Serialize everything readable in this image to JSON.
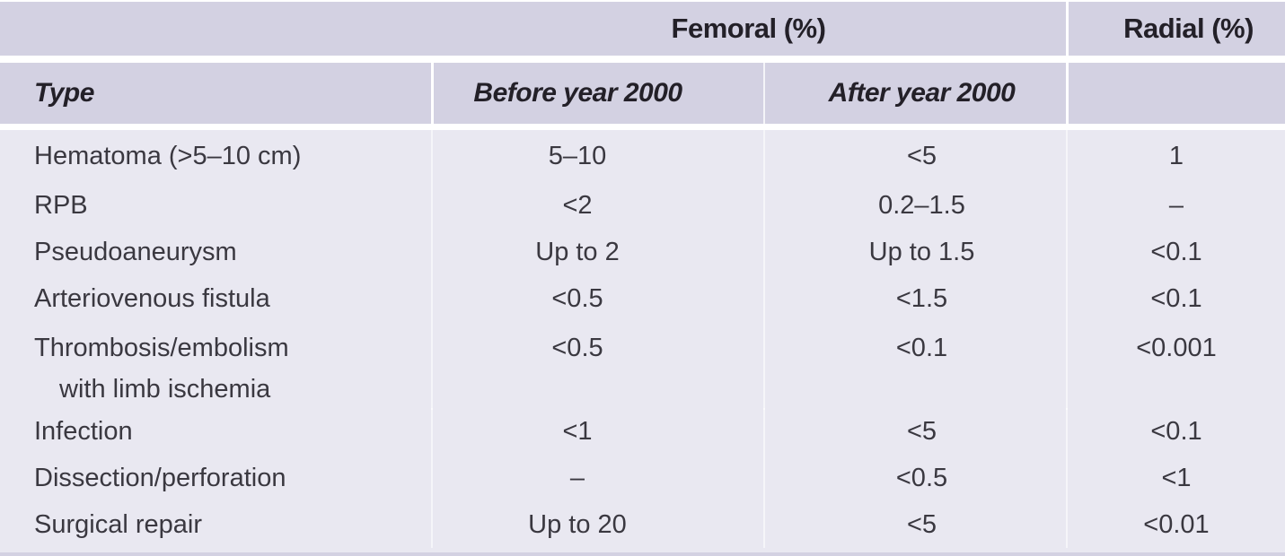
{
  "table": {
    "group_headers": {
      "femoral": "Femoral (%)",
      "radial": "Radial (%)"
    },
    "col_headers": {
      "type": "Type",
      "before": "Before year 2000",
      "after": "After year 2000"
    },
    "rows": [
      {
        "label": "Hematoma (>5–10 cm)",
        "before": "5–10",
        "after": "<5",
        "radial": "1"
      },
      {
        "label": "RPB",
        "before": "<2",
        "after": "0.2–1.5",
        "radial": "–"
      },
      {
        "label": "Pseudoaneurysm",
        "before": "Up to 2",
        "after": "Up to 1.5",
        "radial": "<0.1"
      },
      {
        "label": "Arteriovenous fistula",
        "before": "<0.5",
        "after": "<1.5",
        "radial": "<0.1"
      },
      {
        "label": "Thrombosis/embolism",
        "label2": "with limb ischemia",
        "before": "<0.5",
        "after": "<0.1",
        "radial": "<0.001"
      },
      {
        "label": "Infection",
        "before": "<1",
        "after": "<5",
        "radial": "<0.1"
      },
      {
        "label": "Dissection/perforation",
        "before": "–",
        "after": "<0.5",
        "radial": "<1"
      },
      {
        "label": "Surgical repair",
        "before": "Up to 20",
        "after": "<5",
        "radial": "<0.01"
      }
    ],
    "colors": {
      "header_bg": "#d3d1e2",
      "body_bg": "#e9e8f1",
      "separator": "#ffffff",
      "header_text": "#232028",
      "body_text": "#3a3840"
    }
  }
}
